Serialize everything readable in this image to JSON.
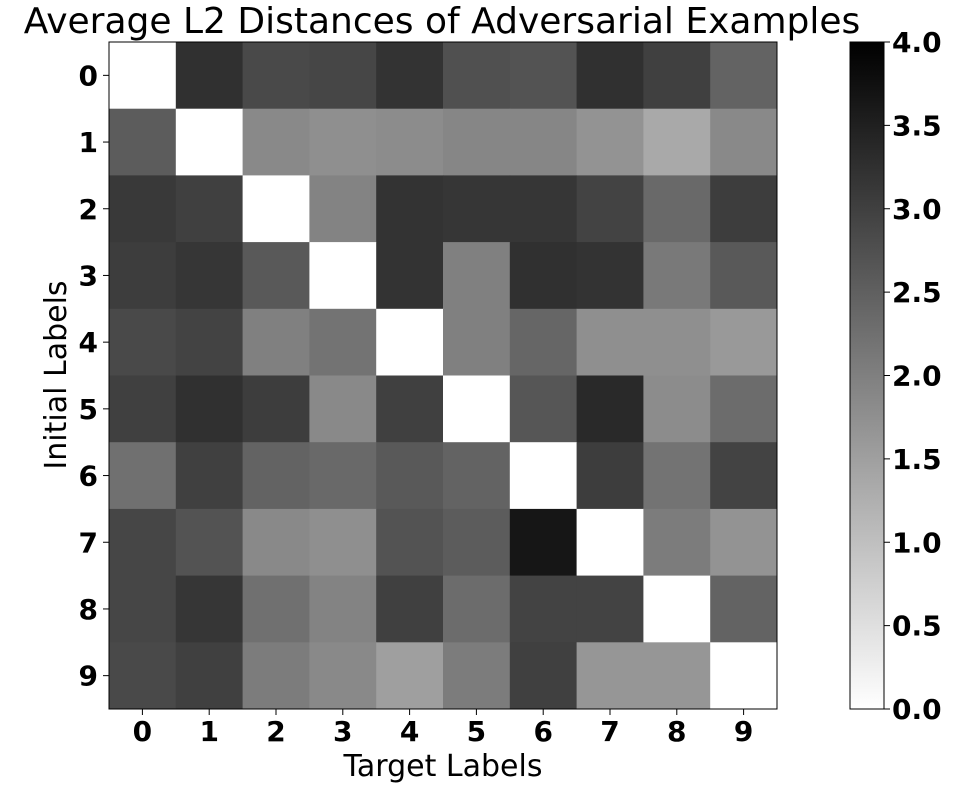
{
  "chart_data": {
    "type": "heatmap",
    "title": "Average L2 Distances of Adversarial Examples",
    "xlabel": "Target Labels",
    "ylabel": "Initial Labels",
    "x_categories": [
      "0",
      "1",
      "2",
      "3",
      "4",
      "5",
      "6",
      "7",
      "8",
      "9"
    ],
    "y_categories": [
      "0",
      "1",
      "2",
      "3",
      "4",
      "5",
      "6",
      "7",
      "8",
      "9"
    ],
    "colormap": "Greys",
    "vmin": 0.0,
    "vmax": 4.0,
    "colorbar_ticks": [
      "0.0",
      "0.5",
      "1.0",
      "1.5",
      "2.0",
      "2.5",
      "3.0",
      "3.5",
      "4.0"
    ],
    "values": [
      [
        0.0,
        3.25,
        2.85,
        2.9,
        3.2,
        2.75,
        2.7,
        3.25,
        3.0,
        2.45
      ],
      [
        2.55,
        0.0,
        1.85,
        1.75,
        1.8,
        1.9,
        1.9,
        1.7,
        1.35,
        1.85
      ],
      [
        3.1,
        3.0,
        0.0,
        1.95,
        3.2,
        3.15,
        3.15,
        2.95,
        2.35,
        3.05
      ],
      [
        3.05,
        3.15,
        2.6,
        0.0,
        3.2,
        2.0,
        3.25,
        3.2,
        2.1,
        2.6
      ],
      [
        2.85,
        2.95,
        2.0,
        2.2,
        0.0,
        2.0,
        2.4,
        1.75,
        1.75,
        1.6
      ],
      [
        3.0,
        3.25,
        3.05,
        1.85,
        3.0,
        0.0,
        2.65,
        3.35,
        1.8,
        2.3
      ],
      [
        2.25,
        3.0,
        2.45,
        2.35,
        2.6,
        2.45,
        0.0,
        3.05,
        2.2,
        2.95
      ],
      [
        2.9,
        2.7,
        1.85,
        1.75,
        2.7,
        2.55,
        3.65,
        0.0,
        2.05,
        1.7
      ],
      [
        2.9,
        3.15,
        2.25,
        1.95,
        3.0,
        2.3,
        2.95,
        2.95,
        0.0,
        2.45
      ],
      [
        2.85,
        3.0,
        2.05,
        1.85,
        1.5,
        2.05,
        3.0,
        1.65,
        1.65,
        0.0
      ]
    ]
  }
}
